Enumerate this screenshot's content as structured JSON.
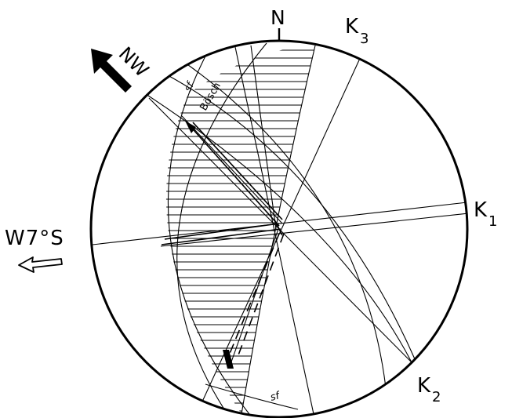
{
  "diagram": {
    "labels": {
      "north": "N",
      "nw": "NW",
      "k3_main": "K",
      "k3_sub": "3",
      "k1_main": "K",
      "k1_sub": "1",
      "k2_main": "K",
      "k2_sub": "2",
      "direction": "W7°S",
      "sf_top": "sf",
      "bosch": "Bösch",
      "sf_bottom": "sf"
    }
  }
}
